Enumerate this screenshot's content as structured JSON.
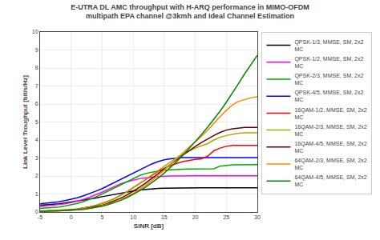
{
  "chart_data": {
    "type": "line",
    "title": "E-UTRA DL AMC throughput with H-ARQ performance in MIMO-OFDM\nmultipath EPA channel @3kmh and Ideal Channel Estimation",
    "xlabel": "SINR [dB]",
    "ylabel": "Link Level Troughput [bit/s/Hz]",
    "x": [
      -5,
      -4,
      -3,
      -2,
      -1,
      0,
      1,
      2,
      3,
      4,
      5,
      6,
      7,
      8,
      9,
      10,
      11,
      12,
      13,
      14,
      15,
      16,
      17,
      18,
      19,
      20,
      21,
      22,
      23,
      24,
      25,
      26,
      27,
      28,
      29,
      30
    ],
    "xlim": [
      -5,
      30
    ],
    "ylim": [
      0,
      10
    ],
    "xticks": [
      -5,
      0,
      5,
      10,
      15,
      20,
      25,
      30
    ],
    "yticks": [
      0,
      1,
      2,
      3,
      4,
      5,
      6,
      7,
      8,
      9,
      10
    ],
    "grid": true,
    "legend": "right",
    "series": [
      {
        "name": "QPSK-1/3, MMSE, SM, 2x2\nMC",
        "color": "#000000",
        "values": [
          0.38,
          0.4,
          0.43,
          0.46,
          0.5,
          0.55,
          0.6,
          0.66,
          0.72,
          0.78,
          0.85,
          0.92,
          0.99,
          1.06,
          1.11,
          1.17,
          1.22,
          1.26,
          1.29,
          1.31,
          1.32,
          1.33,
          1.34,
          1.34,
          1.35,
          1.35,
          1.35,
          1.35,
          1.35,
          1.35,
          1.35,
          1.35,
          1.35,
          1.35,
          1.35,
          1.35
        ]
      },
      {
        "name": "QPSK-1/2, MMSE, SM, 2x2\nMC",
        "color": "#ff00ff",
        "values": [
          0.3,
          0.33,
          0.36,
          0.4,
          0.45,
          0.52,
          0.6,
          0.7,
          0.82,
          0.95,
          1.1,
          1.26,
          1.42,
          1.57,
          1.68,
          1.78,
          1.85,
          1.9,
          1.94,
          1.97,
          1.99,
          2.0,
          2.01,
          2.01,
          2.01,
          2.01,
          2.01,
          2.01,
          2.01,
          2.01,
          2.01,
          2.01,
          2.01,
          2.01,
          2.01,
          2.01
        ]
      },
      {
        "name": "QPSK-2/3, MMSE, SM, 2x2\nMC",
        "color": "#00aa00",
        "values": [
          0.2,
          0.22,
          0.25,
          0.28,
          0.33,
          0.4,
          0.48,
          0.58,
          0.7,
          0.84,
          1.0,
          1.17,
          1.35,
          1.53,
          1.7,
          1.87,
          2.02,
          2.14,
          2.22,
          2.28,
          2.32,
          2.35,
          2.37,
          2.38,
          2.39,
          2.4,
          2.4,
          2.4,
          2.4,
          2.55,
          2.6,
          2.62,
          2.62,
          2.63,
          2.63,
          2.63
        ]
      },
      {
        "name": "QPSK-4/5, MMSE, SM, 2x2\nMC",
        "color": "#0000ff",
        "values": [
          0.45,
          0.48,
          0.52,
          0.57,
          0.63,
          0.7,
          0.79,
          0.9,
          1.02,
          1.16,
          1.3,
          1.47,
          1.64,
          1.82,
          1.99,
          2.18,
          2.35,
          2.52,
          2.67,
          2.8,
          2.9,
          2.96,
          3.0,
          3.02,
          3.02,
          3.02,
          3.02,
          3.02,
          3.02,
          3.02,
          3.02,
          3.02,
          3.02,
          3.02,
          3.02,
          3.02
        ]
      },
      {
        "name": "16QAM-1/2, MMSE, SM, 2x2\nMC",
        "color": "#ff0000",
        "values": [
          0.05,
          0.06,
          0.07,
          0.08,
          0.1,
          0.13,
          0.17,
          0.22,
          0.29,
          0.37,
          0.47,
          0.6,
          0.75,
          0.93,
          1.13,
          1.35,
          1.58,
          1.82,
          2.04,
          2.25,
          2.43,
          2.58,
          2.7,
          2.8,
          2.87,
          2.92,
          2.96,
          3.1,
          3.4,
          3.55,
          3.65,
          3.7,
          3.7,
          3.7,
          3.7,
          3.7
        ]
      },
      {
        "name": "16QAM-2/3, MMSE, SM, 2x2\nMC",
        "color": "#aaaa00",
        "values": [
          0.05,
          0.06,
          0.07,
          0.08,
          0.1,
          0.13,
          0.17,
          0.22,
          0.28,
          0.36,
          0.46,
          0.59,
          0.74,
          0.92,
          1.12,
          1.34,
          1.58,
          1.82,
          2.07,
          2.32,
          2.57,
          2.8,
          3.02,
          3.22,
          3.4,
          3.55,
          3.68,
          3.8,
          4.0,
          4.15,
          4.25,
          4.33,
          4.38,
          4.4,
          4.4,
          4.4
        ]
      },
      {
        "name": "16QAM-4/5, MMSE, SM, 2x2\nMC",
        "color": "#660000",
        "values": [
          0.05,
          0.05,
          0.06,
          0.07,
          0.09,
          0.11,
          0.14,
          0.18,
          0.23,
          0.3,
          0.38,
          0.49,
          0.62,
          0.77,
          0.95,
          1.15,
          1.37,
          1.61,
          1.86,
          2.12,
          2.38,
          2.64,
          2.9,
          3.16,
          3.41,
          3.64,
          3.86,
          4.06,
          4.25,
          4.42,
          4.55,
          4.62,
          4.67,
          4.7,
          4.7,
          4.7
        ]
      },
      {
        "name": "64QAM-2/3, MMSE, SM, 2x2\nMC",
        "color": "#ff8800",
        "values": [
          0.05,
          0.05,
          0.06,
          0.07,
          0.08,
          0.1,
          0.13,
          0.16,
          0.21,
          0.27,
          0.34,
          0.44,
          0.56,
          0.7,
          0.86,
          1.04,
          1.25,
          1.48,
          1.74,
          2.02,
          2.33,
          2.65,
          2.98,
          3.3,
          3.6,
          3.9,
          4.2,
          4.55,
          4.95,
          5.3,
          5.65,
          5.95,
          6.15,
          6.25,
          6.35,
          6.4
        ]
      },
      {
        "name": "64QAM-4/5, MMSE, SM, 2x2\nMC",
        "color": "#008800",
        "values": [
          0.05,
          0.05,
          0.06,
          0.07,
          0.08,
          0.1,
          0.12,
          0.15,
          0.2,
          0.25,
          0.32,
          0.41,
          0.52,
          0.65,
          0.8,
          0.97,
          1.17,
          1.38,
          1.62,
          1.88,
          2.16,
          2.47,
          2.8,
          3.15,
          3.52,
          3.9,
          4.3,
          4.72,
          5.15,
          5.6,
          6.1,
          6.6,
          7.15,
          7.7,
          8.2,
          8.7
        ]
      }
    ]
  }
}
